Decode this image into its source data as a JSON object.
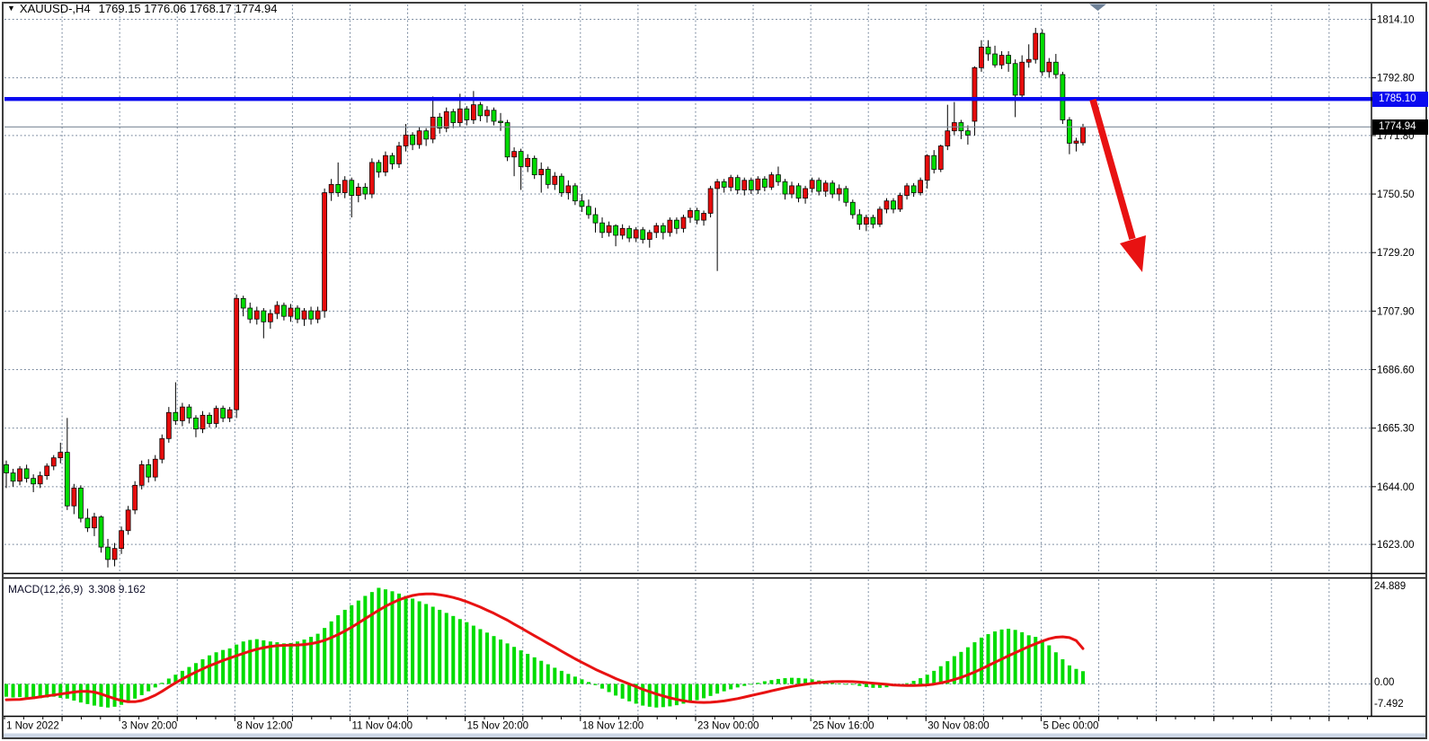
{
  "window": {
    "marker_icon": "▼",
    "symbol_period": "XAUUSD-,H4",
    "ohlc_text": "1769.15 1776.06 1768.17 1774.94"
  },
  "chart_data": {
    "type": "candlestick",
    "symbol": "XAUUSD-",
    "timeframe": "H4",
    "title": "XAUUSD-,H4 1769.15 1776.06 1768.17 1774.94",
    "last_bar": {
      "open": 1769.15,
      "high": 1776.06,
      "low": 1768.17,
      "close": 1774.94
    },
    "price_axis": {
      "labels": [
        "1814.10",
        "1792.80",
        "1771.80",
        "1750.50",
        "1729.20",
        "1707.90",
        "1686.60",
        "1665.30",
        "1644.00",
        "1623.00"
      ]
    },
    "time_axis": {
      "labels": [
        "1 Nov 2022",
        "3 Nov 20:00",
        "8 Nov 12:00",
        "11 Nov 04:00",
        "15 Nov 20:00",
        "18 Nov 12:00",
        "23 Nov 00:00",
        "25 Nov 16:00",
        "30 Nov 08:00",
        "5 Dec 00:00"
      ]
    },
    "resistance_line": {
      "price": 1785.1,
      "label": "1785.10",
      "color": "#0a0af0"
    },
    "current_price": {
      "value": 1774.94,
      "label": "1774.94",
      "color": "#000000"
    },
    "arrow": {
      "meaning": "projected decline",
      "color": "#e81212"
    },
    "shift_marker": {
      "color": "#6e8198"
    },
    "colors": {
      "bull": "#e60c0c",
      "bear": "#00dc00",
      "wick": "#000000",
      "grid": "#73849a",
      "current_line": "#7f8b99",
      "macd_hist": "#00dc00",
      "macd_signal": "#e81212",
      "frame": "#3e3e3e",
      "bottom_strip": "#cdd7e6"
    },
    "candles": [
      [
        1652,
        1653.5,
        1643.5,
        1649
      ],
      [
        1649,
        1650.5,
        1644,
        1646
      ],
      [
        1646,
        1651.5,
        1644.5,
        1650.5
      ],
      [
        1650.5,
        1652,
        1645.5,
        1647
      ],
      [
        1647,
        1648.5,
        1642,
        1645
      ],
      [
        1645,
        1649.5,
        1643.5,
        1648
      ],
      [
        1648,
        1652.5,
        1646.5,
        1651.5
      ],
      [
        1651.5,
        1655.5,
        1650,
        1654.5
      ],
      [
        1654.5,
        1660,
        1652.5,
        1656.5
      ],
      [
        1656.5,
        1669,
        1635.5,
        1637
      ],
      [
        1637,
        1645,
        1634,
        1643.5
      ],
      [
        1643.5,
        1644.5,
        1631,
        1632.5
      ],
      [
        1632.5,
        1636,
        1627.5,
        1629
      ],
      [
        1629,
        1634.5,
        1626,
        1633
      ],
      [
        1633,
        1633.5,
        1620,
        1622
      ],
      [
        1622,
        1625,
        1614.6,
        1617.5
      ],
      [
        1617.5,
        1623.5,
        1615,
        1621.5
      ],
      [
        1621.5,
        1629.5,
        1619.5,
        1628
      ],
      [
        1628,
        1637,
        1626.5,
        1635.5
      ],
      [
        1635.5,
        1646,
        1634,
        1644.5
      ],
      [
        1644.5,
        1653.5,
        1643,
        1652
      ],
      [
        1652,
        1654,
        1645.5,
        1647.5
      ],
      [
        1647.5,
        1655.5,
        1646,
        1654
      ],
      [
        1654,
        1663,
        1652.5,
        1661.5
      ],
      [
        1661.5,
        1673,
        1660,
        1671
      ],
      [
        1671,
        1682,
        1666.5,
        1668
      ],
      [
        1668,
        1674.5,
        1666,
        1673
      ],
      [
        1673,
        1674,
        1667,
        1669
      ],
      [
        1669,
        1670,
        1662,
        1665
      ],
      [
        1665,
        1671.5,
        1663.5,
        1670
      ],
      [
        1670,
        1671,
        1665.5,
        1667
      ],
      [
        1667,
        1673.5,
        1665.5,
        1672.5
      ],
      [
        1672.5,
        1673.5,
        1667.5,
        1669
      ],
      [
        1669,
        1673,
        1667.5,
        1672
      ],
      [
        1672,
        1714,
        1669,
        1712.5
      ],
      [
        1712.5,
        1713.5,
        1706,
        1709
      ],
      [
        1709,
        1711,
        1703.5,
        1705
      ],
      [
        1705,
        1709.5,
        1703,
        1708
      ],
      [
        1708,
        1709,
        1698,
        1704
      ],
      [
        1704,
        1708.5,
        1701.5,
        1707
      ],
      [
        1707,
        1711.5,
        1705,
        1710
      ],
      [
        1710,
        1711,
        1704.5,
        1706
      ],
      [
        1706,
        1710.5,
        1704,
        1709
      ],
      [
        1709,
        1710,
        1703.5,
        1705
      ],
      [
        1705,
        1709,
        1702.5,
        1708
      ],
      [
        1708,
        1709.5,
        1703,
        1705
      ],
      [
        1705,
        1709.5,
        1703.5,
        1708
      ],
      [
        1708,
        1752.5,
        1705.5,
        1751
      ],
      [
        1751,
        1756,
        1748,
        1754
      ],
      [
        1754,
        1762,
        1749.5,
        1751
      ],
      [
        1751,
        1757,
        1749,
        1755.5
      ],
      [
        1755.5,
        1756.5,
        1742,
        1750
      ],
      [
        1750,
        1754.5,
        1747.5,
        1753
      ],
      [
        1753,
        1754.5,
        1748.5,
        1750.5
      ],
      [
        1750.5,
        1763.5,
        1749,
        1762
      ],
      [
        1762,
        1763,
        1756.5,
        1758.5
      ],
      [
        1758.5,
        1766,
        1757,
        1764.5
      ],
      [
        1764.5,
        1765.5,
        1759.5,
        1761.5
      ],
      [
        1761.5,
        1769.5,
        1760,
        1768
      ],
      [
        1768,
        1776,
        1766,
        1772
      ],
      [
        1772,
        1773,
        1766.5,
        1768.5
      ],
      [
        1768.5,
        1775,
        1767,
        1773.5
      ],
      [
        1773.5,
        1774.5,
        1768,
        1770.5
      ],
      [
        1770.5,
        1786,
        1769,
        1778.5
      ],
      [
        1778.5,
        1780,
        1772.5,
        1774.5
      ],
      [
        1774.5,
        1782,
        1773,
        1780.5
      ],
      [
        1780.5,
        1781.5,
        1774.5,
        1776.5
      ],
      [
        1776.5,
        1787,
        1775,
        1781.5
      ],
      [
        1781.5,
        1782.5,
        1775.5,
        1777.5
      ],
      [
        1777.5,
        1788,
        1776,
        1783
      ],
      [
        1783,
        1784,
        1777,
        1779
      ],
      [
        1779,
        1782.5,
        1776.5,
        1781
      ],
      [
        1781,
        1782,
        1775.5,
        1777
      ],
      [
        1777,
        1780,
        1773.5,
        1776.5
      ],
      [
        1776.5,
        1777.5,
        1762.5,
        1764
      ],
      [
        1764,
        1767.5,
        1757,
        1766
      ],
      [
        1766,
        1767,
        1752,
        1760.5
      ],
      [
        1760.5,
        1765,
        1758.5,
        1763.5
      ],
      [
        1763.5,
        1764.5,
        1756,
        1757.5
      ],
      [
        1757.5,
        1762,
        1751,
        1759.5
      ],
      [
        1759.5,
        1760.5,
        1752.5,
        1754
      ],
      [
        1754,
        1758.5,
        1752,
        1757
      ],
      [
        1757,
        1758,
        1749.5,
        1751
      ],
      [
        1751,
        1755.5,
        1748.5,
        1753.5
      ],
      [
        1753.5,
        1754.5,
        1746.5,
        1748
      ],
      [
        1748,
        1750.5,
        1744,
        1746
      ],
      [
        1746,
        1748.5,
        1741.5,
        1743
      ],
      [
        1743,
        1745.5,
        1736.5,
        1740
      ],
      [
        1740,
        1742,
        1734.5,
        1736.5
      ],
      [
        1736.5,
        1740.5,
        1735,
        1739
      ],
      [
        1739,
        1739.5,
        1731.5,
        1735.5
      ],
      [
        1735.5,
        1739.5,
        1734,
        1738
      ],
      [
        1738,
        1739,
        1733,
        1734.5
      ],
      [
        1734.5,
        1738.5,
        1733,
        1737.5
      ],
      [
        1737.5,
        1738.5,
        1732.5,
        1734
      ],
      [
        1734,
        1737.5,
        1731,
        1736.5
      ],
      [
        1736.5,
        1740,
        1734.5,
        1739
      ],
      [
        1739,
        1740,
        1734,
        1736.5
      ],
      [
        1736.5,
        1742,
        1735,
        1741
      ],
      [
        1741,
        1742,
        1736,
        1738
      ],
      [
        1738,
        1743,
        1736.5,
        1742
      ],
      [
        1742,
        1745.5,
        1740,
        1744.5
      ],
      [
        1744.5,
        1745.5,
        1739.5,
        1741
      ],
      [
        1741,
        1744.5,
        1739,
        1743.5
      ],
      [
        1743.5,
        1753.5,
        1742,
        1752.5
      ],
      [
        1752.5,
        1756,
        1722.5,
        1755
      ],
      [
        1755,
        1756,
        1751,
        1753
      ],
      [
        1753,
        1757.5,
        1751.5,
        1756.5
      ],
      [
        1756.5,
        1757.5,
        1750.5,
        1752
      ],
      [
        1752,
        1756.5,
        1750,
        1755.5
      ],
      [
        1755.5,
        1756.5,
        1750.5,
        1752
      ],
      [
        1752,
        1757,
        1750.5,
        1756
      ],
      [
        1756,
        1757,
        1751.5,
        1753
      ],
      [
        1753,
        1758.5,
        1752,
        1757.5
      ],
      [
        1757.5,
        1760.5,
        1753.5,
        1755
      ],
      [
        1755,
        1756,
        1748.5,
        1750.5
      ],
      [
        1750.5,
        1755,
        1749,
        1753.5
      ],
      [
        1753.5,
        1754.5,
        1747.5,
        1749
      ],
      [
        1749,
        1753.5,
        1747,
        1752.5
      ],
      [
        1752.5,
        1756.5,
        1751,
        1755.5
      ],
      [
        1755.5,
        1756.5,
        1750,
        1751.5
      ],
      [
        1751.5,
        1755.5,
        1749.5,
        1754.5
      ],
      [
        1754.5,
        1755.5,
        1749,
        1750.5
      ],
      [
        1750.5,
        1754,
        1748,
        1752.5
      ],
      [
        1752.5,
        1753.5,
        1746,
        1747.5
      ],
      [
        1747.5,
        1748.5,
        1741.5,
        1743
      ],
      [
        1743,
        1745,
        1737.5,
        1739.5
      ],
      [
        1739.5,
        1743,
        1737,
        1742
      ],
      [
        1742,
        1743,
        1738,
        1739.5
      ],
      [
        1739.5,
        1746,
        1738.5,
        1745
      ],
      [
        1745,
        1749,
        1743.5,
        1748
      ],
      [
        1748,
        1749,
        1743.5,
        1745
      ],
      [
        1745,
        1751,
        1744,
        1750
      ],
      [
        1750,
        1754.5,
        1748.5,
        1753.5
      ],
      [
        1753.5,
        1754.5,
        1749.5,
        1751
      ],
      [
        1751,
        1756.5,
        1750,
        1755.5
      ],
      [
        1755.5,
        1765,
        1752.5,
        1764.5
      ],
      [
        1764.5,
        1766.5,
        1758,
        1759.5
      ],
      [
        1759.5,
        1768.5,
        1758.5,
        1768
      ],
      [
        1768,
        1783,
        1766.5,
        1773.5
      ],
      [
        1773.5,
        1784,
        1772,
        1776.5
      ],
      [
        1776.5,
        1777.5,
        1770.5,
        1773.5
      ],
      [
        1773.5,
        1775.5,
        1768.5,
        1772
      ],
      [
        1777,
        1797,
        1771.8,
        1796.5
      ],
      [
        1796.5,
        1806.5,
        1795,
        1804
      ],
      [
        1804,
        1806.5,
        1799,
        1801.5
      ],
      [
        1801.5,
        1804.5,
        1796.5,
        1797.5
      ],
      [
        1797.5,
        1802.5,
        1796,
        1801
      ],
      [
        1801,
        1802.5,
        1795,
        1798
      ],
      [
        1798,
        1799.5,
        1778.5,
        1786.5
      ],
      [
        1786.5,
        1801,
        1785.5,
        1798.5
      ],
      [
        1798.5,
        1805,
        1796.5,
        1799.5
      ],
      [
        1799.5,
        1811,
        1798,
        1809
      ],
      [
        1809,
        1810.5,
        1793.5,
        1795
      ],
      [
        1795,
        1800,
        1793,
        1798.5
      ],
      [
        1798.5,
        1801.5,
        1792.5,
        1794
      ],
      [
        1794,
        1795,
        1776,
        1777.5
      ],
      [
        1777.5,
        1778.5,
        1765,
        1769
      ],
      [
        1769,
        1771,
        1766,
        1769.8
      ],
      [
        1769.15,
        1776.06,
        1768.17,
        1774.94
      ]
    ],
    "macd": {
      "label": "MACD(12,26,9)",
      "values_text": "3.308 9.162",
      "main": 3.308,
      "signal": 9.162,
      "axis_labels": [
        "24.889",
        "0.00",
        "-7.492"
      ],
      "histogram": [
        -3.3,
        -3.5,
        -3.4,
        -3.7,
        -3.9,
        -3.7,
        -3.5,
        -3.3,
        -3.6,
        -3.8,
        -4.3,
        -4.8,
        -5.2,
        -5.6,
        -5.9,
        -6.1,
        -5.9,
        -5.4,
        -4.7,
        -3.8,
        -2.9,
        -1.9,
        -0.9,
        0.3,
        1.4,
        2.4,
        3.4,
        4.4,
        5.4,
        6.4,
        7.4,
        8.2,
        8.8,
        9.2,
        10.2,
        11,
        11.4,
        11.6,
        11.3,
        11,
        10.8,
        10.5,
        10.6,
        11,
        11.5,
        12.2,
        13,
        14.5,
        16.2,
        17.8,
        19.2,
        20.4,
        21.6,
        22.8,
        23.8,
        24.889,
        24.5,
        24,
        23.4,
        22.8,
        22.1,
        21.4,
        20.7,
        20,
        19.2,
        18.4,
        17.6,
        16.8,
        16,
        15.1,
        14.2,
        13.3,
        12.4,
        11.5,
        10.5,
        9.6,
        8.7,
        7.8,
        6.9,
        6,
        5.1,
        4.2,
        3.4,
        2.6,
        1.9,
        1.2,
        0.5,
        -0.3,
        -1.2,
        -2.1,
        -3,
        -3.8,
        -4.5,
        -5.1,
        -5.6,
        -5.9,
        -6.1,
        -6,
        -5.8,
        -5.5,
        -5.1,
        -4.7,
        -4.2,
        -3.7,
        -3.1,
        -2.5,
        -1.9,
        -1.4,
        -0.9,
        -0.5,
        -0.1,
        0.3,
        0.7,
        1,
        1.3,
        1.5,
        1.6,
        1.55,
        1.4,
        1.2,
        0.9,
        0.6,
        0.35,
        0.15,
        0,
        -0.2,
        -0.5,
        -0.8,
        -1,
        -1,
        -0.85,
        -0.6,
        -0.3,
        0.2,
        0.8,
        1.5,
        2.4,
        3.4,
        4.6,
        5.9,
        7.2,
        8.3,
        9.5,
        10.8,
        12,
        12.9,
        13.6,
        14.1,
        14.3,
        14,
        13.4,
        12.6,
        12.2,
        11.4,
        10,
        8.2,
        6.4,
        4.8,
        3.9,
        3.308
      ],
      "signal_line": [
        -4.1,
        -4.05,
        -4,
        -3.8,
        -3.6,
        -3.35,
        -3.1,
        -2.85,
        -2.6,
        -2.35,
        -2.1,
        -1.9,
        -1.9,
        -2.1,
        -2.6,
        -3.2,
        -3.8,
        -4.3,
        -4.6,
        -4.6,
        -4.3,
        -3.7,
        -2.9,
        -1.9,
        -0.8,
        0.3,
        1.3,
        2.2,
        3.1,
        3.9,
        4.7,
        5.4,
        6.1,
        6.7,
        7.3,
        7.9,
        8.5,
        9,
        9.4,
        9.7,
        9.9,
        10,
        10.05,
        10.1,
        10.2,
        10.45,
        10.8,
        11.3,
        12,
        12.8,
        13.7,
        14.7,
        15.8,
        16.9,
        18,
        19.1,
        20.1,
        21,
        21.8,
        22.4,
        22.9,
        23.2,
        23.3,
        23.3,
        23.1,
        22.8,
        22.4,
        21.9,
        21.3,
        20.6,
        19.9,
        19.1,
        18.3,
        17.4,
        16.5,
        15.5,
        14.5,
        13.5,
        12.5,
        11.5,
        10.5,
        9.5,
        8.5,
        7.5,
        6.5,
        5.6,
        4.7,
        3.8,
        3,
        2.2,
        1.4,
        0.7,
        0,
        -0.7,
        -1.4,
        -2,
        -2.6,
        -3.1,
        -3.6,
        -4,
        -4.35,
        -4.6,
        -4.75,
        -4.8,
        -4.75,
        -4.6,
        -4.4,
        -4.1,
        -3.8,
        -3.4,
        -3,
        -2.6,
        -2.2,
        -1.8,
        -1.4,
        -1,
        -0.65,
        -0.35,
        -0.1,
        0.15,
        0.35,
        0.5,
        0.6,
        0.65,
        0.65,
        0.6,
        0.5,
        0.35,
        0.2,
        0.05,
        -0.1,
        -0.25,
        -0.35,
        -0.4,
        -0.4,
        -0.35,
        -0.25,
        -0.05,
        0.25,
        0.65,
        1.15,
        1.7,
        2.35,
        3.1,
        3.9,
        4.75,
        5.6,
        6.45,
        7.3,
        8.1,
        8.9,
        9.7,
        10.4,
        11.1,
        11.7,
        12.1,
        12.2,
        12,
        11.2,
        9.162
      ]
    }
  }
}
